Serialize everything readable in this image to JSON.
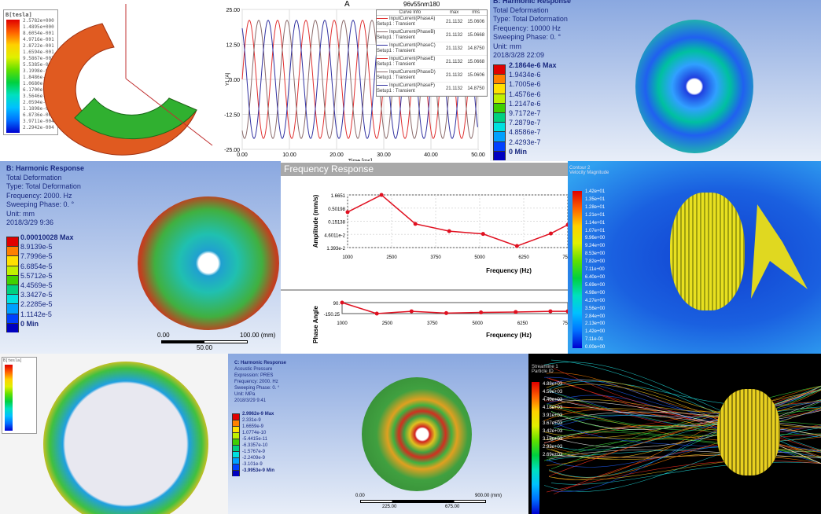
{
  "panel_magnetic": {
    "legend_title": "B[tesla]",
    "levels": [
      "2.5782e+000",
      "1.4895e+000",
      "8.6054e-001",
      "4.9716e-001",
      "2.8722e-001",
      "1.6594e-001",
      "9.5867e-002",
      "5.5385e-002",
      "3.1998e-002",
      "1.8486e-002",
      "1.0680e-002",
      "6.1700e-003",
      "3.5646e-003",
      "2.0594e-003",
      "1.1898e-003",
      "6.8736e-004",
      "3.9711e-004",
      "2.2942e-004"
    ]
  },
  "panel_current": {
    "title": "A",
    "design_name": "96v55nm180",
    "ylabel": "Y1 [A]",
    "xlabel": "Time [ms]",
    "yticks": [
      "25.00",
      "12.50",
      "0.00",
      "-12.50",
      "-25.00"
    ],
    "xticks": [
      "0.00",
      "10.00",
      "20.00",
      "30.00",
      "40.00",
      "50.00"
    ],
    "legend": {
      "headers": [
        "Curve Info",
        "max",
        "rms"
      ],
      "rows": [
        {
          "name": "InputCurrent(PhaseA)",
          "setup": "Setup1 : Transient",
          "max": "21.1132",
          "rms": "15.0606",
          "color": "#e03030"
        },
        {
          "name": "InputCurrent(PhaseB)",
          "setup": "Setup1 : Transient",
          "max": "21.1132",
          "rms": "15.0668",
          "color": "#8a6a6a"
        },
        {
          "name": "InputCurrent(PhaseC)",
          "setup": "Setup1 : Transient",
          "max": "21.1132",
          "rms": "14.8750",
          "color": "#3030a0"
        },
        {
          "name": "InputCurrent(PhaseE)",
          "setup": "Setup1 : Transient",
          "max": "21.1132",
          "rms": "15.0668",
          "color": "#e03030"
        },
        {
          "name": "InputCurrent(PhaseD)",
          "setup": "Setup1 : Transient",
          "max": "21.1132",
          "rms": "15.0606",
          "color": "#8a6a6a"
        },
        {
          "name": "InputCurrent(PhaseF)",
          "setup": "Setup1 : Transient",
          "max": "21.1132",
          "rms": "14.8750",
          "color": "#3030a0"
        }
      ]
    }
  },
  "panel_harmonic_10k": {
    "info": [
      "B: Harmonic Response",
      "Total Deformation",
      "Type: Total Deformation",
      "Frequency: 10000 Hz",
      "Sweeping Phase: 0. °",
      "Unit: mm",
      "2018/3/28 22:09"
    ],
    "levels": [
      "2.1864e-6 Max",
      "1.9434e-6",
      "1.7005e-6",
      "1.4576e-6",
      "1.2147e-6",
      "9.7172e-7",
      "7.2879e-7",
      "4.8586e-7",
      "2.4293e-7",
      "0 Min"
    ]
  },
  "panel_harmonic_2k": {
    "info": [
      "B: Harmonic Response",
      "Total Deformation",
      "Type: Total Deformation",
      "Frequency: 2000. Hz",
      "Sweeping Phase: 0. °",
      "Unit: mm",
      "2018/3/29 9:36"
    ],
    "levels": [
      "0.00010028 Max",
      "8.9139e-5",
      "7.7996e-5",
      "6.6854e-5",
      "5.5712e-5",
      "4.4569e-5",
      "3.3427e-5",
      "2.2285e-5",
      "1.1142e-5",
      "0 Min"
    ],
    "scale": {
      "left": "0.00",
      "right": "100.00 (mm)",
      "mid": "50.00"
    }
  },
  "panel_freq_response": {
    "header": "Frequency Response"
  },
  "chart_data": [
    {
      "type": "line",
      "xlabel": "Time [ms]",
      "ylabel": "Y1 [A]",
      "xlim": [
        0,
        50
      ],
      "ylim": [
        -25,
        25
      ],
      "amplitude": 21.1132,
      "period_ms": 6,
      "series": [
        {
          "name": "InputCurrent(PhaseA)",
          "phase_deg": 0
        },
        {
          "name": "InputCurrent(PhaseB)",
          "phase_deg": 120
        },
        {
          "name": "InputCurrent(PhaseC)",
          "phase_deg": 240
        }
      ]
    },
    {
      "type": "line",
      "xlabel": "Frequency (Hz)",
      "ylabel": "Amplitude (mm/s)",
      "yscale": "log",
      "yticks": [
        "1.6651",
        "0.50198",
        "0.15138",
        "4.6011e-2",
        "1.393e-2"
      ],
      "xticks": [
        "1000",
        "2500",
        "3750",
        "5000",
        "6250",
        "7500"
      ],
      "x": [
        1000,
        2000,
        3000,
        4000,
        5000,
        6000,
        7000,
        7500
      ],
      "y": [
        0.35,
        1.66,
        0.12,
        0.062,
        0.048,
        0.016,
        0.05,
        0.11
      ]
    },
    {
      "type": "line",
      "xlabel": "Frequency (Hz)",
      "ylabel": "Phase Angle",
      "yticks": [
        "90.",
        "-150.25"
      ],
      "xticks": [
        "1000",
        "2500",
        "3750",
        "5000",
        "6250",
        "7500"
      ],
      "x": [
        1000,
        2000,
        3000,
        4000,
        5000,
        6000,
        7000,
        7500
      ],
      "y": [
        90,
        -150,
        -100,
        -140,
        -125,
        -115,
        -100,
        -100
      ]
    }
  ],
  "panel_cfd": {
    "title": [
      "Contour 2",
      "Velocity Magnitude"
    ],
    "levels": [
      "1.42e+01",
      "1.35e+01",
      "1.28e+01",
      "1.21e+01",
      "1.14e+01",
      "1.07e+01",
      "9.96e+00",
      "9.24e+00",
      "8.53e+00",
      "7.82e+00",
      "7.11e+00",
      "6.40e+00",
      "5.69e+00",
      "4.98e+00",
      "4.27e+00",
      "3.56e+00",
      "2.84e+00",
      "2.13e+00",
      "1.42e+00",
      "7.11e-01",
      "0.00e+00"
    ]
  },
  "panel_stator": {
    "legend_title": "B[tesla]"
  },
  "panel_acoustic": {
    "info": [
      "C: Harmonic Response",
      "Acoustic Pressure",
      "Expression: PRES",
      "Frequency: 2000. Hz",
      "Sweeping Phase: 0. °",
      "Unit: MPa",
      "2018/3/29 9:41"
    ],
    "levels": [
      "2.9962e-9 Max",
      "2.331e-9",
      "1.6659e-9",
      "1.0774e-10",
      "-5.4415e-11",
      "-6.3357e-10",
      "-1.5767e-9",
      "-2.2409e-9",
      "-3.101e-9",
      "-3.9953e-9 Min"
    ],
    "scale": {
      "left": "0.00",
      "right": "900.00 (mm)",
      "mid1": "225.00",
      "mid2": "675.00"
    }
  },
  "panel_streamline": {
    "title": [
      "Streamline 1",
      "Particle ID"
    ],
    "levels": [
      "4.88e+03",
      "4.59e+03",
      "4.40e+03",
      "4.15e+03",
      "3.91e+03",
      "3.67e+03",
      "3.42e+03",
      "3.18e+03",
      "2.93e+03",
      "2.69e+03"
    ]
  }
}
